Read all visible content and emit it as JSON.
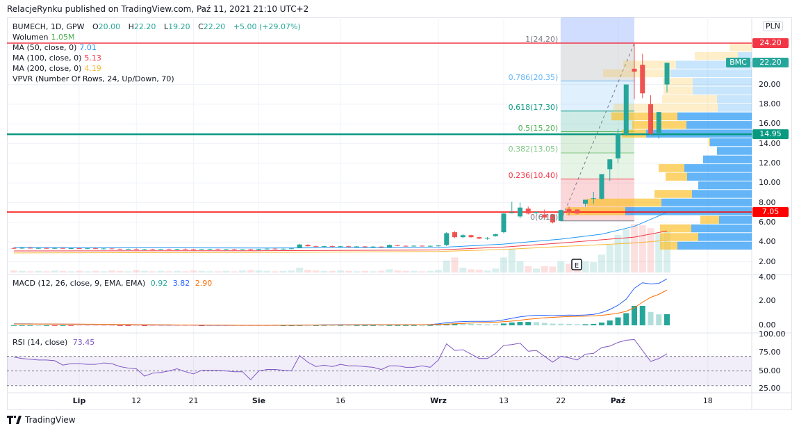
{
  "header": {
    "published": "RelacjeRynku published on TradingView.com, Paź 11, 2021 21:10 UTC+2"
  },
  "legend": {
    "symbol": "BUMECH, 1D, GPW",
    "o_label": "O",
    "o": "20.00",
    "h_label": "H",
    "h": "22.20",
    "l_label": "L",
    "l": "19.20",
    "c_label": "C",
    "c": "22.20",
    "change": "+5.00 (+29.07%)",
    "volume_label": "Wolumen",
    "volume": "1.05M",
    "ma50_label": "MA (50, close, 0)",
    "ma50": "7.01",
    "ma100_label": "MA (100, close, 0)",
    "ma100": "5.13",
    "ma200_label": "MA (200, close, 0)",
    "ma200": "4.19",
    "vpvr_label": "VPVR (Number Of Rows, 24, Up/Down, 70)",
    "macd_label": "MACD (12, 26, close, 9, EMA, EMA)",
    "macd_hist": "0.92",
    "macd_line": "3.82",
    "macd_signal": "2.90",
    "rsi_label": "RSI (14, close)",
    "rsi": "73.45"
  },
  "price_axis": {
    "currency": "PLN",
    "labels": [
      "20.00",
      "18.00",
      "16.00",
      "14.00",
      "12.00",
      "10.00",
      "8.00",
      "6.00",
      "4.00",
      "2.00"
    ],
    "tags": [
      {
        "value": "24.20",
        "color": "#f23645"
      },
      {
        "value": "22.20",
        "color": "#26a69a",
        "prefix": "BMC"
      },
      {
        "value": "14.95",
        "color": "#089981"
      },
      {
        "value": "7.05",
        "color": "#ff0000"
      }
    ]
  },
  "macd_axis": [
    "4.00",
    "2.00",
    "0.00"
  ],
  "rsi_axis": [
    "100.00",
    "75.00",
    "50.00",
    "25.00"
  ],
  "time_ticks": [
    {
      "label": "Lip",
      "bar": 8,
      "bold": true
    },
    {
      "label": "12",
      "bar": 15
    },
    {
      "label": "21",
      "bar": 22
    },
    {
      "label": "Sie",
      "bar": 30,
      "bold": true
    },
    {
      "label": "16",
      "bar": 40
    },
    {
      "label": "Wrz",
      "bar": 52,
      "bold": true
    },
    {
      "label": "13",
      "bar": 60
    },
    {
      "label": "22",
      "bar": 67
    },
    {
      "label": "Paź",
      "bar": 74,
      "bold": true
    },
    {
      "label": "18",
      "bar": 85
    }
  ],
  "horizontal_lines": [
    {
      "price": 24.2,
      "color": "#f23645"
    },
    {
      "price": 14.95,
      "color": "#089981"
    },
    {
      "price": 7.05,
      "color": "#ff0000"
    }
  ],
  "fib": {
    "start_bar": 67,
    "end_bar": 76,
    "low": 6.15,
    "high": 24.2,
    "levels": [
      {
        "label": "1(24.20)",
        "price": 24.2,
        "color": "#787b86"
      },
      {
        "label": "0.786(20.35)",
        "price": 20.35,
        "color": "#64b5f6"
      },
      {
        "label": "0.618(17.30)",
        "price": 17.3,
        "color": "#089981"
      },
      {
        "label": "0.5(15.20)",
        "price": 15.2,
        "color": "#4caf50"
      },
      {
        "label": "0.382(13.05)",
        "price": 13.05,
        "color": "#81c784"
      },
      {
        "label": "0.236(10.40)",
        "price": 10.4,
        "color": "#f23645"
      },
      {
        "label": "0(6.15)",
        "price": 6.15,
        "color": "#787b86"
      }
    ]
  },
  "earnings_marker": {
    "label": "E",
    "bar": 68
  },
  "candles": [
    [
      3.4,
      3.45,
      3.3,
      3.35
    ],
    [
      3.35,
      3.45,
      3.3,
      3.42
    ],
    [
      3.42,
      3.48,
      3.35,
      3.38
    ],
    [
      3.38,
      3.45,
      3.32,
      3.4
    ],
    [
      3.4,
      3.44,
      3.3,
      3.33
    ],
    [
      3.33,
      3.42,
      3.3,
      3.4
    ],
    [
      3.4,
      3.46,
      3.34,
      3.36
    ],
    [
      3.36,
      3.42,
      3.3,
      3.38
    ],
    [
      3.38,
      3.45,
      3.32,
      3.34
    ],
    [
      3.34,
      3.4,
      3.28,
      3.37
    ],
    [
      3.37,
      3.44,
      3.3,
      3.32
    ],
    [
      3.32,
      3.38,
      3.26,
      3.35
    ],
    [
      3.35,
      3.4,
      3.28,
      3.3
    ],
    [
      3.3,
      3.36,
      3.24,
      3.28
    ],
    [
      3.28,
      3.34,
      3.22,
      3.31
    ],
    [
      3.31,
      3.36,
      3.22,
      3.24
    ],
    [
      3.24,
      3.3,
      3.18,
      3.27
    ],
    [
      3.27,
      3.32,
      3.2,
      3.25
    ],
    [
      3.25,
      3.32,
      3.22,
      3.29
    ],
    [
      3.29,
      3.34,
      3.24,
      3.26
    ],
    [
      3.26,
      3.32,
      3.2,
      3.3
    ],
    [
      3.3,
      3.36,
      3.24,
      3.27
    ],
    [
      3.27,
      3.32,
      3.2,
      3.24
    ],
    [
      3.24,
      3.3,
      3.2,
      3.28
    ],
    [
      3.28,
      3.34,
      3.22,
      3.29
    ],
    [
      3.29,
      3.34,
      3.22,
      3.25
    ],
    [
      3.25,
      3.3,
      3.2,
      3.27
    ],
    [
      3.27,
      3.32,
      3.2,
      3.23
    ],
    [
      3.23,
      3.28,
      3.18,
      3.26
    ],
    [
      3.26,
      3.3,
      3.12,
      3.18
    ],
    [
      3.18,
      3.3,
      3.15,
      3.28
    ],
    [
      3.28,
      3.36,
      3.24,
      3.33
    ],
    [
      3.33,
      3.38,
      3.26,
      3.3
    ],
    [
      3.3,
      3.36,
      3.24,
      3.32
    ],
    [
      3.32,
      3.38,
      3.28,
      3.36
    ],
    [
      3.4,
      3.8,
      3.38,
      3.75
    ],
    [
      3.72,
      3.76,
      3.55,
      3.58
    ],
    [
      3.58,
      3.64,
      3.5,
      3.55
    ],
    [
      3.55,
      3.62,
      3.5,
      3.59
    ],
    [
      3.59,
      3.64,
      3.5,
      3.54
    ],
    [
      3.54,
      3.62,
      3.5,
      3.58
    ],
    [
      3.58,
      3.62,
      3.5,
      3.55
    ],
    [
      3.55,
      3.6,
      3.48,
      3.56
    ],
    [
      3.56,
      3.6,
      3.48,
      3.52
    ],
    [
      3.52,
      3.58,
      3.46,
      3.54
    ],
    [
      3.54,
      3.58,
      3.44,
      3.47
    ],
    [
      3.47,
      3.75,
      3.45,
      3.7
    ],
    [
      3.68,
      3.72,
      3.58,
      3.62
    ],
    [
      3.62,
      3.66,
      3.55,
      3.6
    ],
    [
      3.6,
      3.66,
      3.55,
      3.63
    ],
    [
      3.63,
      3.68,
      3.55,
      3.58
    ],
    [
      3.58,
      3.64,
      3.52,
      3.62
    ],
    [
      3.62,
      3.7,
      3.55,
      3.65
    ],
    [
      3.7,
      5.0,
      3.6,
      4.9
    ],
    [
      5.0,
      5.1,
      4.4,
      4.5
    ],
    [
      4.5,
      4.8,
      4.4,
      4.7
    ],
    [
      4.7,
      4.75,
      4.45,
      4.5
    ],
    [
      4.5,
      4.55,
      4.3,
      4.35
    ],
    [
      4.38,
      4.5,
      4.25,
      4.42
    ],
    [
      4.6,
      4.85,
      4.55,
      4.8
    ],
    [
      5.0,
      6.95,
      4.9,
      6.9
    ],
    [
      7.0,
      8.1,
      6.9,
      7.02
    ],
    [
      6.6,
      8.0,
      6.4,
      7.5
    ],
    [
      7.4,
      7.6,
      6.8,
      6.9
    ],
    [
      6.95,
      7.1,
      6.85,
      7.05
    ],
    [
      6.8,
      7.3,
      6.3,
      6.5
    ],
    [
      6.8,
      6.85,
      5.9,
      6.0
    ],
    [
      6.15,
      7.3,
      6.1,
      7.25
    ],
    [
      7.35,
      7.6,
      6.7,
      7.0
    ],
    [
      7.3,
      7.35,
      6.8,
      6.9
    ],
    [
      7.9,
      8.3,
      7.6,
      8.3
    ],
    [
      8.4,
      9.1,
      7.9,
      8.45
    ],
    [
      8.4,
      10.9,
      8.3,
      10.9
    ],
    [
      11.4,
      12.4,
      10.2,
      12.4
    ],
    [
      12.5,
      15.5,
      12.0,
      14.95
    ],
    [
      14.9,
      20.0,
      14.8,
      20.0
    ],
    [
      21.6,
      24.2,
      18.5,
      21.3
    ],
    [
      22.0,
      23.1,
      18.6,
      19.1
    ],
    [
      18.0,
      18.9,
      14.9,
      15.0
    ],
    [
      15.1,
      17.2,
      14.5,
      17.2
    ],
    [
      20.0,
      22.2,
      19.2,
      22.2
    ]
  ],
  "volume_m": [
    0.05,
    0.04,
    0.03,
    0.04,
    0.03,
    0.05,
    0.04,
    0.03,
    0.04,
    0.03,
    0.04,
    0.03,
    0.05,
    0.04,
    0.03,
    0.06,
    0.04,
    0.03,
    0.04,
    0.03,
    0.04,
    0.03,
    0.05,
    0.04,
    0.03,
    0.03,
    0.04,
    0.03,
    0.05,
    0.06,
    0.05,
    0.04,
    0.03,
    0.04,
    0.05,
    0.12,
    0.07,
    0.05,
    0.04,
    0.04,
    0.05,
    0.04,
    0.03,
    0.04,
    0.03,
    0.04,
    0.08,
    0.05,
    0.04,
    0.04,
    0.03,
    0.04,
    0.06,
    0.3,
    0.38,
    0.12,
    0.08,
    0.07,
    0.05,
    0.1,
    0.38,
    0.6,
    0.28,
    0.16,
    0.1,
    0.16,
    0.15,
    0.28,
    0.22,
    0.18,
    0.28,
    0.26,
    0.45,
    0.7,
    0.95,
    1.09,
    1.22,
    1.19,
    1.12,
    0.98,
    1.05
  ],
  "ma": [
    {
      "name": "MA50",
      "color": "#2196f3",
      "points": [
        [
          0,
          3.45
        ],
        [
          30,
          3.4
        ],
        [
          52,
          3.45
        ],
        [
          60,
          3.8
        ],
        [
          67,
          4.3
        ],
        [
          72,
          4.8
        ],
        [
          76,
          5.6
        ],
        [
          80,
          7.01
        ]
      ]
    },
    {
      "name": "MA100",
      "color": "#f23645",
      "points": [
        [
          0,
          3.1
        ],
        [
          30,
          3.12
        ],
        [
          52,
          3.2
        ],
        [
          60,
          3.5
        ],
        [
          67,
          3.9
        ],
        [
          76,
          4.5
        ],
        [
          80,
          5.13
        ]
      ]
    },
    {
      "name": "MA200",
      "color": "#f5b935",
      "points": [
        [
          0,
          2.9
        ],
        [
          30,
          2.95
        ],
        [
          52,
          3.05
        ],
        [
          60,
          3.25
        ],
        [
          67,
          3.55
        ],
        [
          76,
          3.9
        ],
        [
          80,
          4.19
        ]
      ]
    }
  ],
  "vpvr": {
    "row_low": 3.2,
    "row_step": 0.875,
    "rows": [
      [
        107,
        25,
        1
      ],
      [
        77,
        55,
        1
      ],
      [
        87,
        45,
        1
      ],
      [
        47,
        27,
        1
      ],
      [
        182,
        85,
        1
      ],
      [
        130,
        107,
        1
      ],
      [
        86,
        54,
        1
      ],
      [
        77,
        0,
        1
      ],
      [
        93,
        31,
        1
      ],
      [
        97,
        37,
        1
      ],
      [
        70,
        0,
        1
      ],
      [
        50,
        0,
        1
      ],
      [
        60,
        2,
        1
      ],
      [
        152,
        35,
        1
      ],
      [
        94,
        78,
        1
      ],
      [
        107,
        95,
        1
      ],
      [
        49,
        150,
        0
      ],
      [
        50,
        79,
        0
      ],
      [
        85,
        42,
        0
      ],
      [
        85,
        43,
        0
      ],
      [
        117,
        97,
        0
      ],
      [
        109,
        76,
        0
      ],
      [
        20,
        62,
        0
      ],
      [
        0,
        32,
        0
      ]
    ]
  },
  "macd": {
    "line": [
      0.12,
      0.12,
      0.12,
      0.11,
      0.11,
      0.1,
      0.1,
      0.09,
      0.09,
      0.08,
      0.08,
      0.07,
      0.07,
      0.06,
      0.05,
      0.04,
      0.03,
      0.03,
      0.02,
      0.02,
      0.02,
      0.02,
      0.02,
      0.01,
      0.01,
      0.01,
      0.01,
      0.0,
      0.0,
      0.0,
      0.0,
      0.0,
      0.0,
      0.01,
      0.01,
      0.02,
      0.03,
      0.03,
      0.04,
      0.04,
      0.05,
      0.05,
      0.05,
      0.05,
      0.05,
      0.05,
      0.06,
      0.06,
      0.06,
      0.06,
      0.06,
      0.07,
      0.12,
      0.22,
      0.28,
      0.31,
      0.33,
      0.33,
      0.33,
      0.35,
      0.45,
      0.58,
      0.7,
      0.78,
      0.82,
      0.82,
      0.8,
      0.82,
      0.84,
      0.83,
      0.85,
      0.9,
      1.05,
      1.3,
      1.65,
      2.15,
      3.05,
      3.5,
      3.4,
      3.45,
      3.82
    ],
    "signal": [
      0.11,
      0.11,
      0.11,
      0.11,
      0.11,
      0.11,
      0.1,
      0.1,
      0.1,
      0.09,
      0.09,
      0.08,
      0.08,
      0.07,
      0.07,
      0.06,
      0.05,
      0.05,
      0.04,
      0.04,
      0.03,
      0.03,
      0.03,
      0.02,
      0.02,
      0.02,
      0.02,
      0.01,
      0.01,
      0.01,
      0.01,
      0.01,
      0.01,
      0.01,
      0.01,
      0.01,
      0.02,
      0.02,
      0.02,
      0.03,
      0.03,
      0.04,
      0.04,
      0.04,
      0.04,
      0.05,
      0.05,
      0.05,
      0.05,
      0.05,
      0.06,
      0.06,
      0.07,
      0.09,
      0.13,
      0.16,
      0.19,
      0.22,
      0.24,
      0.26,
      0.3,
      0.35,
      0.42,
      0.5,
      0.56,
      0.62,
      0.66,
      0.69,
      0.72,
      0.74,
      0.76,
      0.78,
      0.82,
      0.9,
      1.0,
      1.15,
      1.45,
      1.9,
      2.3,
      2.55,
      2.9
    ]
  },
  "rsi": {
    "upper": 70,
    "middle": 50,
    "lower": 30,
    "values": [
      69,
      67,
      66,
      65,
      65,
      64,
      58,
      60,
      60,
      59,
      59,
      61,
      60,
      56,
      54,
      53,
      43,
      47,
      48,
      50,
      53,
      49,
      46,
      51,
      51,
      51,
      50,
      49,
      49,
      38,
      50,
      52,
      52,
      51,
      50,
      71,
      62,
      56,
      58,
      56,
      59,
      57,
      57,
      56,
      55,
      52,
      57,
      57,
      55,
      55,
      57,
      55,
      65,
      87,
      78,
      79,
      73,
      67,
      67,
      74,
      85,
      86,
      88,
      77,
      78,
      70,
      62,
      70,
      68,
      65,
      73,
      74,
      82,
      84,
      89,
      92,
      93,
      78,
      63,
      67,
      73.45
    ]
  },
  "footer": {
    "brand": "TradingView"
  }
}
